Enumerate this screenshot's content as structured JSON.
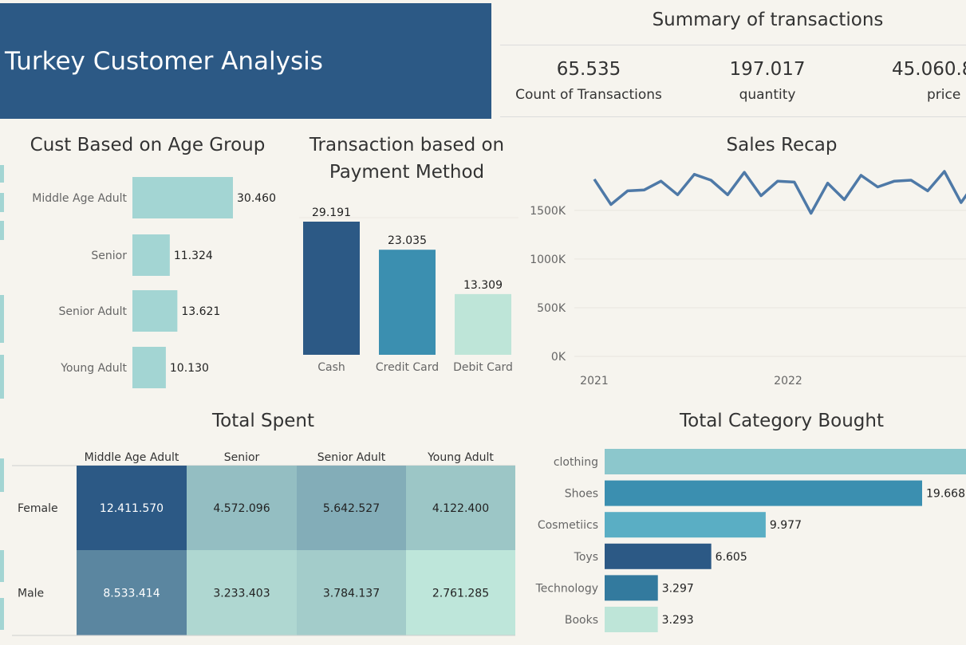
{
  "header": {
    "title": "Turkey Customer Analysis"
  },
  "summary": {
    "title": "Summary of transactions",
    "kpis": [
      {
        "value": "65.535",
        "label": "Count of Transactions"
      },
      {
        "value": "197.017",
        "label": "quantity"
      },
      {
        "value": "45.060.8",
        "label": "price"
      }
    ]
  },
  "colors": {
    "banner": "#2c5985",
    "background": "#f6f4ee",
    "age_bar": "#a3d5d3",
    "line": "#4e79a7"
  },
  "chart_data": [
    {
      "id": "age",
      "type": "bar",
      "orientation": "horizontal",
      "title": "Cust Based on Age Group",
      "categories": [
        "Middle Age Adult",
        "Senior",
        "Senior Adult",
        "Young Adult"
      ],
      "values": [
        30460,
        11324,
        13621,
        10130
      ],
      "labels": [
        "30.460",
        "11.324",
        "13.621",
        "10.130"
      ],
      "colors": [
        "#a3d5d3",
        "#a3d5d3",
        "#a3d5d3",
        "#a3d5d3"
      ]
    },
    {
      "id": "payment",
      "type": "bar",
      "title": "Transaction based on Payment Method",
      "title_lines": [
        "Transaction based on",
        "Payment Method"
      ],
      "categories": [
        "Cash",
        "Credit Card",
        "Debit Card"
      ],
      "values": [
        29191,
        23035,
        13309
      ],
      "labels": [
        "29.191",
        "23.035",
        "13.309"
      ],
      "colors": [
        "#2c5985",
        "#3b8fb0",
        "#bee5d8"
      ]
    },
    {
      "id": "sales",
      "type": "line",
      "title": "Sales Recap",
      "x_tick_labels": [
        "2021",
        "2022"
      ],
      "y_ticks": [
        0,
        500000,
        1000000,
        1500000
      ],
      "y_tick_labels": [
        "0K",
        "500K",
        "1000K",
        "1500K"
      ],
      "ylim": [
        0,
        1900000
      ],
      "grid": true,
      "values": [
        1820000,
        1560000,
        1700000,
        1710000,
        1800000,
        1660000,
        1870000,
        1810000,
        1660000,
        1890000,
        1650000,
        1800000,
        1790000,
        1470000,
        1780000,
        1610000,
        1860000,
        1740000,
        1800000,
        1810000,
        1700000,
        1900000,
        1580000,
        1820000
      ]
    },
    {
      "id": "spent",
      "type": "heatmap",
      "title": "Total Spent",
      "columns": [
        "Middle Age Adult",
        "Senior",
        "Senior Adult",
        "Young Adult"
      ],
      "rows": [
        "Female",
        "Male"
      ],
      "values": [
        [
          12411570,
          4572096,
          5642527,
          4122400
        ],
        [
          8533414,
          3233403,
          3784137,
          2761285
        ]
      ],
      "labels": [
        [
          "12.411.570",
          "4.572.096",
          "5.642.527",
          "4.122.400"
        ],
        [
          "8.533.414",
          "3.233.403",
          "3.784.137",
          "2.761.285"
        ]
      ]
    },
    {
      "id": "category",
      "type": "bar",
      "orientation": "horizontal",
      "title": "Total Category Bought",
      "categories": [
        "clothing",
        "Shoes",
        "Cosmetiics",
        "Toys",
        "Technology",
        "Books"
      ],
      "values": [
        22700,
        19668,
        9977,
        6605,
        3297,
        3293
      ],
      "labels": [
        "",
        "19.668",
        "9.977",
        "6.605",
        "3.297",
        "3.293"
      ],
      "colors": [
        "#8cc7cc",
        "#3b8fb0",
        "#5aaec4",
        "#2c5985",
        "#337a9e",
        "#bee5d8"
      ]
    }
  ]
}
